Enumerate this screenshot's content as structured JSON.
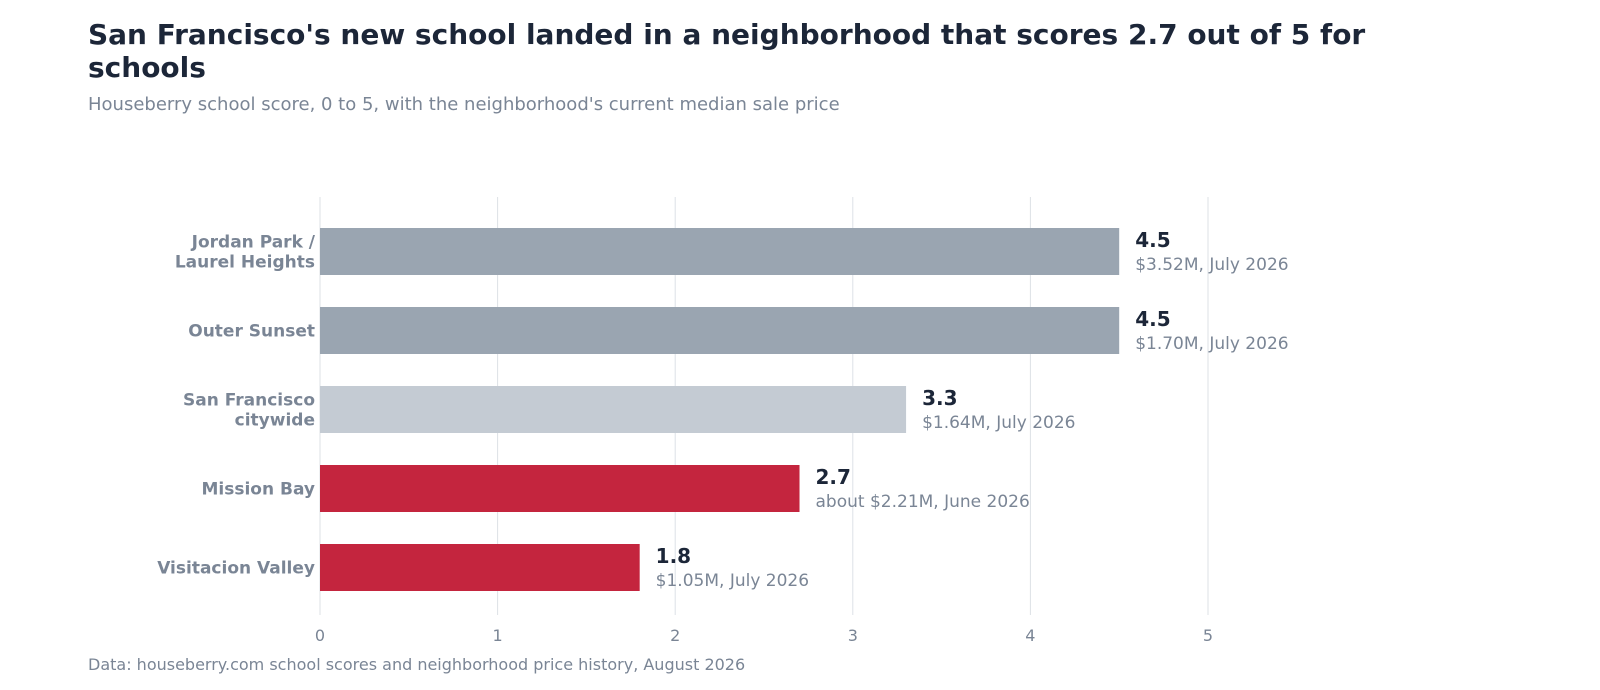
{
  "chart_data": {
    "type": "bar",
    "orientation": "horizontal",
    "title": "San Francisco's new school landed in a neighborhood that scores 2.7 out of 5 for schools",
    "subtitle": "Houseberry school score, 0 to 5, with the neighborhood's current median sale price",
    "source": "Data: houseberry.com school scores and neighborhood price history, August 2026",
    "xlim": [
      0,
      5
    ],
    "x_ticks": [
      "0",
      "1",
      "2",
      "3",
      "4",
      "5"
    ],
    "grid": "vertical",
    "categories": [
      [
        "Jordan Park /",
        "Laurel Heights"
      ],
      [
        "Outer Sunset"
      ],
      [
        "San Francisco",
        "citywide"
      ],
      [
        "Mission Bay"
      ],
      [
        "Visitacion Valley"
      ]
    ],
    "values": [
      4.5,
      4.5,
      3.3,
      2.7,
      1.8
    ],
    "value_labels": [
      "4.5",
      "4.5",
      "3.3",
      "2.7",
      "1.8"
    ],
    "price_labels": [
      "$3.52M, July 2026",
      "$1.70M, July 2026",
      "$1.64M, July 2026",
      "about $2.21M, June 2026",
      "$1.05M, July 2026"
    ],
    "bar_colors": [
      "#9aa5b1",
      "#9aa5b1",
      "#c4cbd3",
      "#c4253e",
      "#c4253e"
    ],
    "colors": {
      "grid": "#dde1e6",
      "title": "#1c2638",
      "muted": "#7a8595"
    }
  }
}
